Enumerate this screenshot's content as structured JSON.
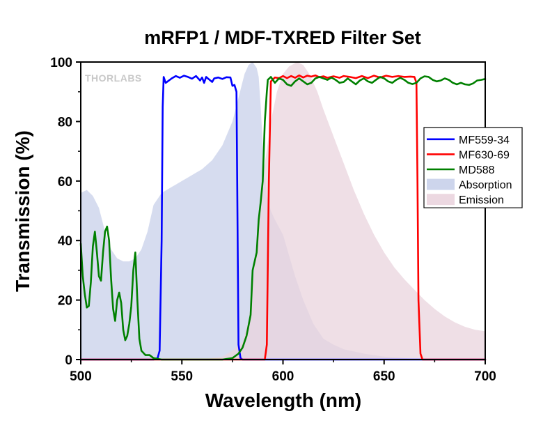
{
  "chart_data": {
    "type": "line",
    "title": "mRFP1 / MDF-TXRED Filter Set",
    "xlabel": "Wavelength (nm)",
    "ylabel": "Transmission (%)",
    "xlim": [
      500,
      700
    ],
    "ylim": [
      0,
      100
    ],
    "x_ticks": [
      500,
      550,
      600,
      650,
      700
    ],
    "y_ticks": [
      0,
      20,
      40,
      60,
      80,
      100
    ],
    "grid": false,
    "legend_position": "right",
    "logo_text": "THORLABS",
    "series": [
      {
        "name": "MF559-34",
        "kind": "line",
        "color": "#0000ff",
        "points": [
          [
            500,
            0
          ],
          [
            536,
            0
          ],
          [
            538,
            0.5
          ],
          [
            539,
            3
          ],
          [
            540,
            40
          ],
          [
            540.5,
            85
          ],
          [
            541,
            95
          ],
          [
            542,
            93
          ],
          [
            543,
            93.5
          ],
          [
            545,
            94.5
          ],
          [
            547,
            95.3
          ],
          [
            549,
            94.7
          ],
          [
            551,
            95.4
          ],
          [
            553,
            95
          ],
          [
            555,
            94.4
          ],
          [
            557,
            95.3
          ],
          [
            559,
            93.8
          ],
          [
            560,
            94.8
          ],
          [
            561,
            93
          ],
          [
            562,
            95
          ],
          [
            563,
            94.4
          ],
          [
            565,
            93.3
          ],
          [
            566,
            94.5
          ],
          [
            568,
            94.8
          ],
          [
            570,
            94.3
          ],
          [
            572,
            94.9
          ],
          [
            574,
            94.8
          ],
          [
            575,
            92
          ],
          [
            576,
            92.3
          ],
          [
            577,
            90
          ],
          [
            577.6,
            40
          ],
          [
            578,
            5
          ],
          [
            579,
            0.5
          ],
          [
            580,
            0
          ],
          [
            700,
            0
          ]
        ]
      },
      {
        "name": "MF630-69",
        "kind": "line",
        "color": "#ff0000",
        "points": [
          [
            500,
            0
          ],
          [
            591,
            0
          ],
          [
            592,
            5
          ],
          [
            593,
            60
          ],
          [
            594,
            93.5
          ],
          [
            596,
            94.8
          ],
          [
            598,
            94.6
          ],
          [
            600,
            95.3
          ],
          [
            602,
            94.6
          ],
          [
            604,
            95.3
          ],
          [
            606,
            94.7
          ],
          [
            608,
            95.5
          ],
          [
            610,
            94.8
          ],
          [
            612,
            95.4
          ],
          [
            614,
            95.1
          ],
          [
            616,
            95.5
          ],
          [
            618,
            94.9
          ],
          [
            620,
            95.2
          ],
          [
            622,
            94.7
          ],
          [
            625,
            95.2
          ],
          [
            628,
            94.7
          ],
          [
            630,
            95.3
          ],
          [
            633,
            95
          ],
          [
            636,
            94.6
          ],
          [
            639,
            95.3
          ],
          [
            642,
            94.6
          ],
          [
            645,
            95.4
          ],
          [
            648,
            94.8
          ],
          [
            651,
            95.4
          ],
          [
            654,
            95
          ],
          [
            657,
            95.3
          ],
          [
            660,
            95
          ],
          [
            663,
            95.1
          ],
          [
            665,
            95
          ],
          [
            666,
            93
          ],
          [
            666.5,
            60
          ],
          [
            667,
            20
          ],
          [
            668,
            2
          ],
          [
            669,
            0
          ],
          [
            700,
            0
          ]
        ]
      },
      {
        "name": "MD588",
        "kind": "line",
        "color": "#008000",
        "points": [
          [
            500,
            39
          ],
          [
            501,
            28
          ],
          [
            502,
            22
          ],
          [
            503,
            17.5
          ],
          [
            504,
            18
          ],
          [
            505,
            26
          ],
          [
            506,
            38
          ],
          [
            507,
            43
          ],
          [
            508,
            36
          ],
          [
            509,
            28
          ],
          [
            510,
            26.5
          ],
          [
            511,
            36
          ],
          [
            512,
            43
          ],
          [
            513,
            44.7
          ],
          [
            514,
            40
          ],
          [
            515,
            27
          ],
          [
            516,
            17
          ],
          [
            517,
            13
          ],
          [
            518,
            20
          ],
          [
            519,
            22.5
          ],
          [
            520,
            19
          ],
          [
            521,
            10
          ],
          [
            522,
            6.5
          ],
          [
            523,
            8
          ],
          [
            524,
            12
          ],
          [
            525,
            18
          ],
          [
            526,
            30
          ],
          [
            527,
            36
          ],
          [
            528,
            20
          ],
          [
            529,
            7
          ],
          [
            530,
            3
          ],
          [
            532,
            1.5
          ],
          [
            534,
            1.5
          ],
          [
            536,
            0.5
          ],
          [
            540,
            0
          ],
          [
            570,
            0
          ],
          [
            575,
            0.5
          ],
          [
            578,
            2
          ],
          [
            580,
            4
          ],
          [
            582,
            8
          ],
          [
            584,
            15
          ],
          [
            585,
            30
          ],
          [
            587,
            36
          ],
          [
            588,
            47
          ],
          [
            589,
            53
          ],
          [
            590,
            60
          ],
          [
            591,
            80
          ],
          [
            592,
            90
          ],
          [
            592.5,
            94
          ],
          [
            594,
            95
          ],
          [
            596,
            93
          ],
          [
            598,
            94.5
          ],
          [
            600,
            94
          ],
          [
            602,
            92.5
          ],
          [
            604,
            92
          ],
          [
            606,
            93.5
          ],
          [
            608,
            94.5
          ],
          [
            610,
            93.5
          ],
          [
            612,
            92.5
          ],
          [
            614,
            93
          ],
          [
            616,
            94.5
          ],
          [
            618,
            95
          ],
          [
            620,
            94.5
          ],
          [
            622,
            94
          ],
          [
            624,
            94.8
          ],
          [
            626,
            94
          ],
          [
            628,
            93
          ],
          [
            630,
            93.3
          ],
          [
            632,
            94.5
          ],
          [
            634,
            93.5
          ],
          [
            636,
            92.5
          ],
          [
            638,
            93.8
          ],
          [
            640,
            94.5
          ],
          [
            642,
            93.5
          ],
          [
            644,
            93
          ],
          [
            646,
            94
          ],
          [
            648,
            95
          ],
          [
            650,
            94.5
          ],
          [
            652,
            93.5
          ],
          [
            654,
            93
          ],
          [
            656,
            94
          ],
          [
            658,
            94.7
          ],
          [
            660,
            94
          ],
          [
            662,
            93
          ],
          [
            664,
            92.6
          ],
          [
            666,
            93
          ],
          [
            668,
            94.5
          ],
          [
            670,
            95.2
          ],
          [
            672,
            95
          ],
          [
            674,
            94
          ],
          [
            676,
            93.5
          ],
          [
            678,
            93.8
          ],
          [
            680,
            94.5
          ],
          [
            682,
            94
          ],
          [
            684,
            93
          ],
          [
            686,
            92.5
          ],
          [
            688,
            93
          ],
          [
            690,
            92.5
          ],
          [
            692,
            92.3
          ],
          [
            694,
            92.8
          ],
          [
            696,
            93.8
          ],
          [
            698,
            94
          ],
          [
            700,
            94.3
          ]
        ]
      },
      {
        "name": "Absorption",
        "kind": "area",
        "color": "#c8d0ea",
        "points": [
          [
            500,
            56
          ],
          [
            503,
            57
          ],
          [
            506,
            55
          ],
          [
            509,
            51
          ],
          [
            512,
            43
          ],
          [
            515,
            37
          ],
          [
            518,
            34
          ],
          [
            521,
            33
          ],
          [
            524,
            33
          ],
          [
            527,
            34
          ],
          [
            530,
            37
          ],
          [
            533,
            43
          ],
          [
            536,
            52
          ],
          [
            540,
            56
          ],
          [
            545,
            58
          ],
          [
            550,
            60
          ],
          [
            555,
            62
          ],
          [
            560,
            64
          ],
          [
            565,
            67
          ],
          [
            570,
            72
          ],
          [
            575,
            80
          ],
          [
            578,
            88
          ],
          [
            581,
            96
          ],
          [
            583,
            99
          ],
          [
            585,
            100
          ],
          [
            587,
            98
          ],
          [
            588,
            95
          ],
          [
            589,
            85
          ],
          [
            590,
            72
          ],
          [
            592,
            55
          ],
          [
            594,
            50
          ],
          [
            596,
            47
          ],
          [
            600,
            42
          ],
          [
            603,
            35
          ],
          [
            606,
            28
          ],
          [
            610,
            20
          ],
          [
            615,
            12
          ],
          [
            620,
            7
          ],
          [
            625,
            5
          ],
          [
            630,
            3.5
          ],
          [
            640,
            2
          ],
          [
            650,
            1
          ],
          [
            660,
            0.5
          ],
          [
            670,
            0
          ],
          [
            700,
            0
          ]
        ]
      },
      {
        "name": "Emission",
        "kind": "area",
        "color": "#ead4de",
        "points": [
          [
            500,
            0
          ],
          [
            560,
            0
          ],
          [
            570,
            1
          ],
          [
            575,
            3
          ],
          [
            580,
            6
          ],
          [
            583,
            13
          ],
          [
            585,
            24
          ],
          [
            588,
            48
          ],
          [
            591,
            66
          ],
          [
            594,
            80
          ],
          [
            597,
            90
          ],
          [
            600,
            96
          ],
          [
            603,
            98.5
          ],
          [
            607,
            100
          ],
          [
            610,
            99
          ],
          [
            613,
            96
          ],
          [
            617,
            90
          ],
          [
            620,
            84
          ],
          [
            625,
            75
          ],
          [
            630,
            66
          ],
          [
            635,
            57
          ],
          [
            640,
            49
          ],
          [
            645,
            42
          ],
          [
            650,
            36
          ],
          [
            655,
            31
          ],
          [
            660,
            27
          ],
          [
            665,
            23.5
          ],
          [
            670,
            20
          ],
          [
            675,
            17
          ],
          [
            680,
            14.5
          ],
          [
            685,
            12.5
          ],
          [
            690,
            11
          ],
          [
            695,
            10
          ],
          [
            700,
            9.5
          ]
        ]
      }
    ]
  }
}
